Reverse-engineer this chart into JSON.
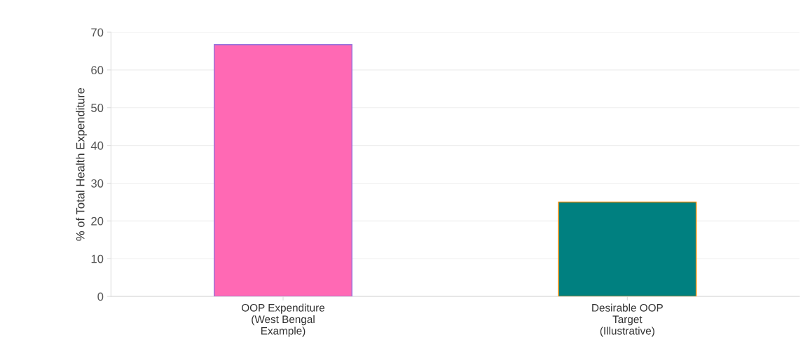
{
  "chart_data": {
    "type": "bar",
    "ylabel": "% of Total Health Expenditure",
    "categories": [
      "OOP Expenditure\n(West Bengal\nExample)",
      "Desirable OOP\nTarget\n(Illustrative)"
    ],
    "values": [
      66.7,
      25
    ],
    "colors": [
      "#ff69b4",
      "#008080"
    ],
    "ylim": [
      0,
      70
    ],
    "yticks": [
      0,
      10,
      20,
      30,
      40,
      50,
      60,
      70
    ],
    "grid": "y"
  }
}
